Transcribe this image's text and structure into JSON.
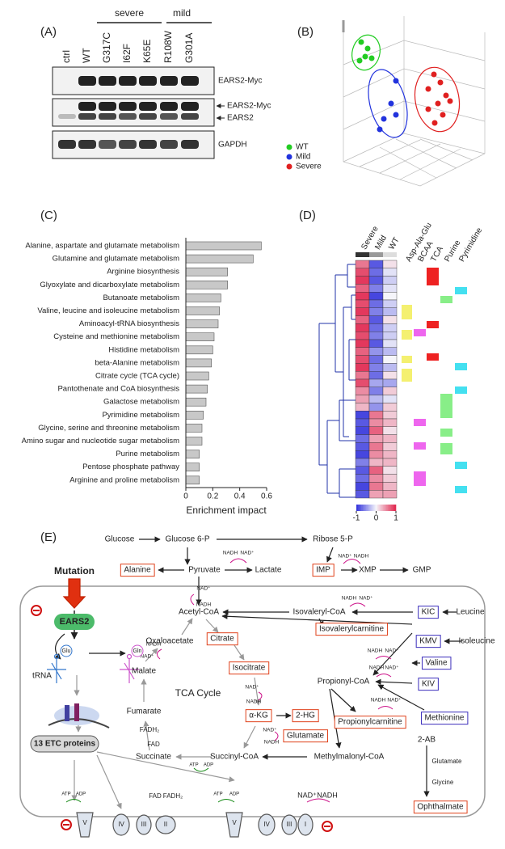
{
  "panel_labels": [
    "(A)",
    "(B)",
    "(C)",
    "(D)",
    "(E)"
  ],
  "western_blot": {
    "groups": [
      "severe",
      "mild"
    ],
    "lanes": [
      "ctrl",
      "WT",
      "G317C",
      "I62F",
      "K65E",
      "R108W",
      "G301A"
    ],
    "row_labels": [
      "EARS2-Myc",
      "EARS2-Myc",
      "EARS2",
      "GAPDH"
    ]
  },
  "pca": {
    "legend": [
      "WT",
      "Mild",
      "Severe"
    ],
    "colors": [
      "#22cc22",
      "#2233dd",
      "#e02020"
    ]
  },
  "chart_data": {
    "type": "barh",
    "categories": [
      "Alanine, aspartate and glutamate metabolism",
      "Glutamine and glutamate metabolism",
      "Arginine biosynthesis",
      "Glyoxylate and dicarboxylate metabolism",
      "Butanoate metabolism",
      "Valine, leucine and isoleucine metabolism",
      "Aminoacyl-tRNA biosynthesis",
      "Cysteine and methionine metabolism",
      "Histidine metabolism",
      "beta-Alanine metabolism",
      "Citrate cycle (TCA cycle)",
      "Pantothenate and CoA biosynthesis",
      "Galactose metabolism",
      "Pyrimidine metabolism",
      "Glycine, serine and threonine metabolism",
      "Amino sugar and nucleotide sugar metabolism",
      "Purine metabolism",
      "Pentose phosphate pathway",
      "Arginine and proline metabolism"
    ],
    "values": [
      0.56,
      0.5,
      0.31,
      0.31,
      0.26,
      0.25,
      0.24,
      0.21,
      0.2,
      0.19,
      0.17,
      0.16,
      0.15,
      0.13,
      0.12,
      0.12,
      0.1,
      0.1,
      0.1
    ],
    "color": "#c8c8c8",
    "xlabel": "Enrichment impact",
    "xlim": [
      0,
      0.6
    ],
    "xticks": [
      0,
      0.2,
      0.4,
      0.6
    ]
  },
  "heatmap": {
    "columns": [
      "Severe",
      "Mild",
      "WT"
    ],
    "annotations": [
      "Asp-Ala-Glu",
      "BCAA",
      "TCA",
      "Purine",
      "Pyrimidine"
    ],
    "clim": [
      -1,
      1
    ],
    "cticks": [
      -1,
      0,
      1
    ],
    "values": [
      [
        0.6,
        -0.8,
        0.1
      ],
      [
        0.8,
        -0.7,
        -0.1
      ],
      [
        0.9,
        -0.8,
        -0.2
      ],
      [
        0.7,
        -0.6,
        -0.1
      ],
      [
        0.9,
        -0.9,
        0.0
      ],
      [
        0.8,
        -0.7,
        -0.2
      ],
      [
        0.9,
        -0.6,
        -0.3
      ],
      [
        0.7,
        -0.8,
        0.1
      ],
      [
        0.9,
        -0.7,
        -0.2
      ],
      [
        0.8,
        -0.6,
        -0.2
      ],
      [
        0.9,
        -0.8,
        -0.1
      ],
      [
        0.7,
        -0.5,
        -0.3
      ],
      [
        0.8,
        -0.7,
        0.0
      ],
      [
        0.9,
        -0.6,
        -0.3
      ],
      [
        0.6,
        -0.7,
        0.1
      ],
      [
        0.8,
        -0.4,
        -0.4
      ],
      [
        0.5,
        -0.6,
        0.2
      ],
      [
        0.4,
        -0.3,
        -0.1
      ],
      [
        0.3,
        -0.5,
        0.2
      ],
      [
        -0.9,
        0.6,
        0.2
      ],
      [
        -0.8,
        0.5,
        0.3
      ],
      [
        -0.9,
        0.7,
        0.1
      ],
      [
        -0.7,
        0.4,
        0.3
      ],
      [
        -0.8,
        0.6,
        0.2
      ],
      [
        -0.9,
        0.5,
        0.3
      ],
      [
        -0.6,
        0.3,
        0.3
      ],
      [
        -0.8,
        0.7,
        0.1
      ],
      [
        -0.7,
        0.5,
        0.2
      ],
      [
        -0.9,
        0.6,
        0.3
      ],
      [
        -0.8,
        0.4,
        0.4
      ]
    ]
  },
  "pathway": {
    "labels": [
      "Glucose",
      "Glucose 6-P",
      "Ribose 5-P",
      "NADH",
      "NAD⁺",
      "Alanine",
      "Pyruvate",
      "Lactate",
      "NAD⁺",
      "NADH",
      "IMP",
      "XMP",
      "GMP",
      "Mutation",
      "NAD⁺",
      "NADH",
      "Acetyl-CoA",
      "Isovaleryl-CoA",
      "NADH",
      "NAD⁺",
      "KIC",
      "Leucine",
      "EARS2",
      "Isovalerylcarnitine",
      "Citrate",
      "Oxaloacetate",
      "NADH",
      "NAD⁺",
      "KMV",
      "Isoleucine",
      "NADH",
      "NAD⁺",
      "Glu",
      "Gln",
      "tRNA",
      "Isocitrate",
      "NADH",
      "NAD⁺",
      "Valine",
      "KIV",
      "Propionyl-CoA",
      "Malate",
      "TCA Cycle",
      "NAD⁺",
      "NADH",
      "NADH",
      "NAD⁺",
      "Propionylcarnitine",
      "Methionine",
      "Fumarate",
      "α-KG",
      "2-HG",
      "Glutamate",
      "NAD⁺",
      "NADH",
      "FADH₂",
      "FAD",
      "13 ETC proteins",
      "Succinate",
      "Succinyl-CoA",
      "Methylmalonyl-CoA",
      "2-AB",
      "Glutamate",
      "Glycine",
      "Ophthalmate",
      "ATP",
      "ADP",
      "ATP",
      "ADP",
      "FAD",
      "FADH₂",
      "ATP",
      "ADP",
      "NAD⁺",
      "NADH",
      "V",
      "IV",
      "III",
      "II",
      "V",
      "IV",
      "III",
      "I"
    ]
  }
}
